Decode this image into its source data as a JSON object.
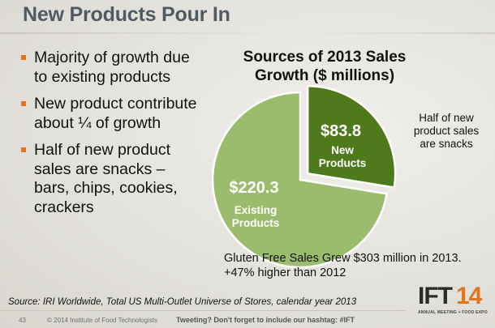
{
  "slide": {
    "title": "New Products Pour In",
    "bullets": [
      "Majority of growth due to existing products",
      "New product contribute about ¼ of growth",
      "Half of new product sales are snacks – bars, chips, cookies, crackers"
    ],
    "callout": "Half of new product sales are snacks",
    "note": "Gluten Free Sales Grew $303 million in 2013.    +47% higher than 2012",
    "source": "Source: IRI Worldwide,  Total US  Multi-Outlet Universe of Stores, calendar year 2013",
    "slide_number": "43",
    "copyright": "© 2014 Institute of Food Technologists",
    "tweet": "Tweeting? Don't forget to include our hashtag: #IFT",
    "logo": {
      "mark": "IFT",
      "number": "14",
      "tagline": "ANNUAL MEETING + FOOD EXPO"
    }
  },
  "chart_data": {
    "type": "pie",
    "title": "Sources of 2013 Sales Growth ($ millions)",
    "slices": [
      {
        "label": "New Products",
        "value": 83.8,
        "value_label": "$83.8",
        "color": "#4e7a1c"
      },
      {
        "label": "Existing Products",
        "value": 220.3,
        "value_label": "$220.3",
        "color": "#9bbc6c"
      }
    ]
  }
}
